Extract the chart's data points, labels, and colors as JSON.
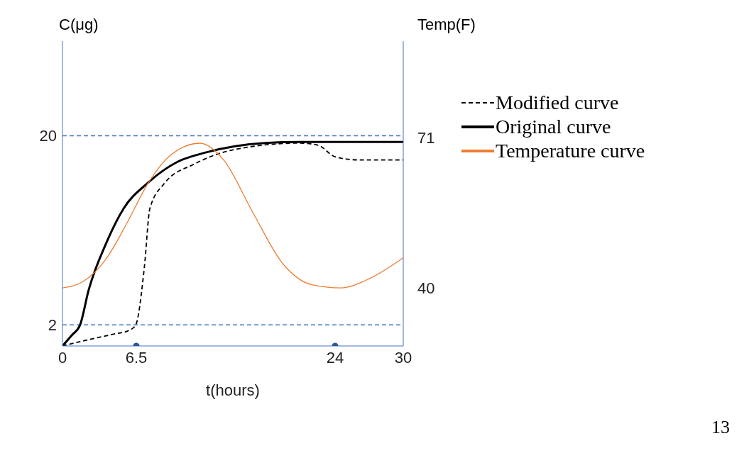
{
  "chart_data": {
    "type": "line",
    "xlabel": "t(hours)",
    "ylabel": "C(μg)",
    "y2label": "Temp(F)",
    "xlim": [
      0,
      30
    ],
    "xticks": [
      0,
      6.5,
      24,
      30
    ],
    "ylim": [
      0,
      29
    ],
    "yticks": [
      2,
      20
    ],
    "y2lim": [
      28,
      91
    ],
    "y2ticks": [
      40,
      71
    ],
    "legend": "right",
    "marker": "none",
    "series": [
      {
        "name": "Modified curve",
        "color": "#000000",
        "line_style": "dashed",
        "x": [
          0,
          2.3,
          4.4,
          5.9,
          6.45,
          7.2,
          7.7,
          9,
          11.6,
          15.2,
          20.9,
          22.5,
          24,
          26.1,
          30
        ],
        "values": [
          0,
          0.6,
          1.1,
          1.5,
          2,
          7.4,
          13.1,
          15.5,
          17.3,
          18.7,
          19.3,
          19.1,
          18,
          17.7,
          17.7
        ]
      },
      {
        "name": "Original curve",
        "color": "#000000",
        "line_style": "solid",
        "x": [
          0,
          0.8,
          1.55,
          2.3,
          3.9,
          5.4,
          7.5,
          10.1,
          12.6,
          15.2,
          17.8,
          20.9,
          30
        ],
        "values": [
          0,
          1,
          2,
          5.3,
          9.9,
          13.1,
          15.5,
          17.5,
          18.4,
          19,
          19.3,
          19.4,
          19.4
        ]
      },
      {
        "name": "Temperature curve",
        "color": "#ed7d31",
        "axis": "y2",
        "line_style": "solid",
        "x": [
          0,
          1.8,
          3.9,
          5.7,
          7.5,
          9.6,
          12.1,
          14.2,
          16.8,
          19.4,
          21.9,
          24.5,
          27.1,
          30
        ],
        "values": [
          40,
          41.3,
          46.2,
          53.5,
          61.5,
          67.6,
          69.9,
          66.4,
          55.4,
          45,
          40.7,
          40,
          42,
          46.2
        ]
      },
      {
        "type": "scatter",
        "color": "#2f5597",
        "marker": "circle",
        "x": [
          6.5,
          24
        ],
        "values": [
          0,
          0
        ]
      }
    ],
    "ref_lines": [
      {
        "axis": "y",
        "value": 2,
        "color": "#4472c4",
        "line_style": "dashed"
      },
      {
        "axis": "y",
        "value": 20,
        "color": "#4472c4",
        "line_style": "dashed"
      }
    ],
    "annotations": [
      "13"
    ]
  }
}
